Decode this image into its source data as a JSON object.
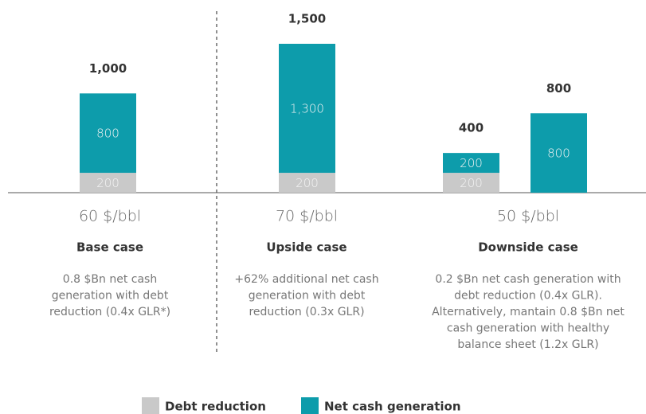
{
  "chart_data": {
    "type": "bar",
    "stacked": true,
    "ylim": [
      0,
      1500
    ],
    "categories": [
      null,
      null,
      null,
      null
    ],
    "series": [
      {
        "name": "Debt reduction",
        "color": "#c9c9c9",
        "values": [
          200,
          200,
          200,
          null
        ]
      },
      {
        "name": "Net cash generation",
        "color": "#0d9cab",
        "values": [
          800,
          1300,
          200,
          800
        ],
        "value_labels": [
          "800",
          "1,300",
          "200",
          "800"
        ]
      }
    ],
    "totals": [
      1000,
      1500,
      400,
      800
    ],
    "total_labels": [
      "1,000",
      "1,500",
      "400",
      "800"
    ],
    "cases": [
      {
        "price": "60 $/bbl",
        "name": "Base case",
        "description": [
          "0.8 $Bn net cash",
          "generation with debt",
          "reduction (0.4x GLR*)"
        ]
      },
      {
        "price": "70 $/bbl",
        "name": "Upside case",
        "description": [
          "+62% additional net cash",
          "generation with debt",
          "reduction (0.3x GLR)"
        ]
      },
      {
        "price": "50 $/bbl",
        "name": "Downside case",
        "description": [
          "0.2 $Bn net cash generation with",
          "debt reduction (0.4x GLR).",
          "Alternatively, mantain 0.8 $Bn net",
          "cash generation with healthy",
          "balance sheet (1.2x GLR)"
        ]
      }
    ]
  }
}
